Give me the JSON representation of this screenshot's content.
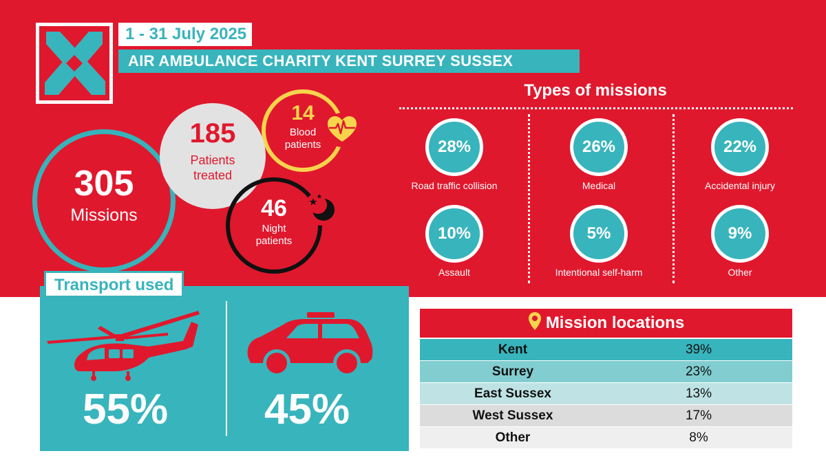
{
  "header": {
    "date_range": "1 - 31 July 2025",
    "title": "AIR AMBULANCE CHARITY KENT SURREY SUSSEX"
  },
  "logo": {
    "icon": "x-cross-logo-icon"
  },
  "stats": {
    "missions": {
      "value": "305",
      "label": "Missions"
    },
    "patients": {
      "value": "185",
      "label_line1": "Patients",
      "label_line2": "treated"
    },
    "blood": {
      "value": "14",
      "label_line1": "Blood",
      "label_line2": "patients",
      "icon": "heart-pulse-icon"
    },
    "night": {
      "value": "46",
      "label_line1": "Night",
      "label_line2": "patients",
      "icon": "moon-stars-icon"
    }
  },
  "mission_types": {
    "title": "Types of missions",
    "items": [
      {
        "percent": "28%",
        "label": "Road traffic collision"
      },
      {
        "percent": "26%",
        "label": "Medical"
      },
      {
        "percent": "22%",
        "label": "Accidental injury"
      },
      {
        "percent": "10%",
        "label": "Assault"
      },
      {
        "percent": "5%",
        "label": "Intentional self-harm"
      },
      {
        "percent": "9%",
        "label": "Other"
      }
    ]
  },
  "transport": {
    "title": "Transport used",
    "helicopter": {
      "percent": "55%",
      "icon": "helicopter-icon"
    },
    "car": {
      "percent": "45%",
      "icon": "car-icon"
    }
  },
  "locations": {
    "title": "Mission locations",
    "icon": "map-pin-icon",
    "rows": [
      {
        "name": "Kent",
        "value": "39%",
        "color": "#38b4bc"
      },
      {
        "name": "Surrey",
        "value": "23%",
        "color": "#81cdd0"
      },
      {
        "name": "East Sussex",
        "value": "13%",
        "color": "#bfe3e4"
      },
      {
        "name": "West Sussex",
        "value": "17%",
        "color": "#dcdcdc"
      },
      {
        "name": "Other",
        "value": "8%",
        "color": "#efefef"
      }
    ]
  },
  "colors": {
    "red": "#e0182d",
    "teal": "#38b4bc",
    "yellow": "#f6d44c",
    "grey": "#e2e2e2"
  }
}
